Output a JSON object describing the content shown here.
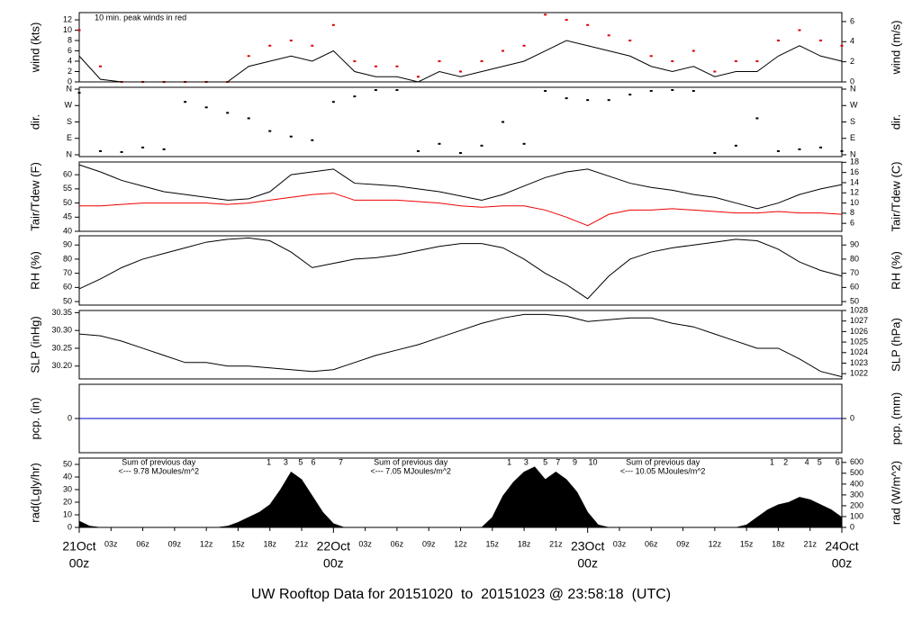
{
  "chart_data": [
    {
      "type": "line",
      "ylabel": "wind (kts)",
      "y2label": "wind (m/s)",
      "annotation": {
        "x": 1.2,
        "text": "10 min. peak winds in red",
        "color": "#dd0000"
      },
      "xlim": [
        0,
        72
      ],
      "ylim": [
        0,
        13.4
      ],
      "yticks": [
        0,
        2,
        4,
        6,
        8,
        10,
        12
      ],
      "y2lim": [
        0,
        6.89
      ],
      "y2ticks": [
        0,
        2,
        4,
        6
      ],
      "x": [
        0,
        2,
        4,
        6,
        8,
        10,
        12,
        14,
        16,
        18,
        20,
        22,
        24,
        26,
        28,
        30,
        32,
        34,
        36,
        38,
        40,
        42,
        44,
        46,
        48,
        50,
        52,
        54,
        56,
        58,
        60,
        62,
        64,
        66,
        68,
        70,
        72
      ],
      "series": [
        {
          "color": "#dd0000",
          "style": "dots",
          "values": [
            10,
            3,
            0,
            0,
            0,
            0,
            0,
            0,
            5,
            7,
            8,
            7,
            11,
            4,
            3,
            3,
            1,
            4,
            2,
            4,
            6,
            7,
            13,
            12,
            11,
            9,
            8,
            5,
            4,
            6,
            2,
            4,
            4,
            8,
            10,
            8,
            7
          ]
        },
        {
          "color": "#000000",
          "style": "line",
          "values": [
            5,
            0.5,
            0,
            0,
            0,
            0,
            0,
            0,
            3,
            4,
            5,
            4,
            6,
            2,
            1,
            1,
            0,
            2,
            1,
            2,
            3,
            4,
            6,
            8,
            7,
            6,
            5,
            3,
            2,
            3,
            1,
            2,
            2,
            5,
            7,
            5,
            4
          ]
        }
      ]
    },
    {
      "type": "scatter",
      "ylabel": "dir.",
      "y2label": "dir.",
      "xlim": [
        0,
        72
      ],
      "ylim": [
        -10,
        370
      ],
      "yticks": [
        {
          "value": 0,
          "label": "N"
        },
        {
          "value": 90,
          "label": "E"
        },
        {
          "value": 180,
          "label": "S"
        },
        {
          "value": 270,
          "label": "W"
        },
        {
          "value": 360,
          "label": "N"
        }
      ],
      "y2lim": [
        -10,
        370
      ],
      "y2ticks": [
        {
          "value": 0,
          "label": "N"
        },
        {
          "value": 90,
          "label": "E"
        },
        {
          "value": 180,
          "label": "S"
        },
        {
          "value": 270,
          "label": "W"
        },
        {
          "value": 360,
          "label": "N"
        }
      ],
      "x": [
        0,
        2,
        4,
        6,
        8,
        10,
        12,
        14,
        16,
        18,
        20,
        22,
        24,
        26,
        28,
        30,
        32,
        34,
        36,
        38,
        40,
        42,
        44,
        46,
        48,
        50,
        52,
        54,
        56,
        58,
        60,
        62,
        64,
        66,
        68,
        70,
        72
      ],
      "series": [
        {
          "color": "#000000",
          "style": "dots",
          "values": [
            340,
            20,
            15,
            40,
            30,
            290,
            260,
            230,
            200,
            130,
            100,
            80,
            290,
            320,
            355,
            355,
            20,
            60,
            10,
            50,
            180,
            60,
            350,
            310,
            300,
            300,
            330,
            350,
            355,
            350,
            10,
            50,
            200,
            20,
            30,
            40,
            20
          ]
        }
      ]
    },
    {
      "type": "line",
      "ylabel": "Tair/Tdew (F)",
      "y2label": "Tair/Tdew (C)",
      "xlim": [
        0,
        72
      ],
      "ylim": [
        40,
        64.5
      ],
      "yticks": [
        40,
        45,
        50,
        55,
        60
      ],
      "y2lim": [
        4.44,
        18.06
      ],
      "y2ticks": [
        6,
        8,
        10,
        12,
        14,
        16,
        18
      ],
      "x": [
        0,
        2,
        4,
        6,
        8,
        10,
        12,
        14,
        16,
        18,
        20,
        22,
        24,
        26,
        28,
        30,
        32,
        34,
        36,
        38,
        40,
        42,
        44,
        46,
        48,
        50,
        52,
        54,
        56,
        58,
        60,
        62,
        64,
        66,
        68,
        70,
        72
      ],
      "series": [
        {
          "color": "#000000",
          "style": "line",
          "values": [
            63.5,
            61,
            58,
            56,
            54,
            53,
            52,
            51,
            51.5,
            54,
            60,
            61,
            62,
            57,
            56.5,
            56,
            55,
            54,
            52.5,
            51,
            53,
            56,
            59,
            61,
            62,
            59.5,
            57,
            55.5,
            54.5,
            53,
            52,
            50,
            48,
            50,
            53,
            55,
            56.5
          ]
        },
        {
          "color": "#ee0000",
          "style": "line",
          "values": [
            49,
            49,
            49.5,
            50,
            50,
            50,
            50,
            49.5,
            50,
            51,
            52,
            53,
            53.5,
            51,
            51,
            51,
            50.5,
            50,
            49,
            48.5,
            49,
            49,
            47.5,
            45,
            42,
            46,
            47.5,
            47.5,
            48,
            47.5,
            47,
            46.5,
            46.5,
            47,
            46.5,
            46.5,
            46
          ]
        }
      ]
    },
    {
      "type": "line",
      "ylabel": "RH (%)",
      "y2label": "RH (%)",
      "xlim": [
        0,
        72
      ],
      "ylim": [
        47.5,
        96.5
      ],
      "yticks": [
        50,
        60,
        70,
        80,
        90
      ],
      "y2lim": [
        47.5,
        96.5
      ],
      "y2ticks": [
        50,
        60,
        70,
        80,
        90
      ],
      "x": [
        0,
        2,
        4,
        6,
        8,
        10,
        12,
        14,
        16,
        18,
        20,
        22,
        24,
        26,
        28,
        30,
        32,
        34,
        36,
        38,
        40,
        42,
        44,
        46,
        48,
        50,
        52,
        54,
        56,
        58,
        60,
        62,
        64,
        66,
        68,
        70,
        72
      ],
      "series": [
        {
          "color": "#000000",
          "style": "line",
          "values": [
            59,
            66,
            74,
            80,
            84,
            88,
            92,
            94,
            95,
            93,
            85,
            74,
            77,
            80,
            81,
            83,
            86,
            89,
            91,
            91,
            88,
            80,
            70,
            62,
            52,
            68,
            80,
            85,
            88,
            90,
            92,
            94,
            93,
            87,
            78,
            72,
            68
          ]
        }
      ]
    },
    {
      "type": "line",
      "ylabel": "SLP (inHg)",
      "y2label": "SLP (hPa)",
      "xlim": [
        0,
        72
      ],
      "ylim": [
        30.164,
        30.356
      ],
      "yticks": [
        {
          "value": 30.2,
          "label": "30.20"
        },
        30.25,
        {
          "value": 30.3,
          "label": "30.30"
        },
        30.35
      ],
      "y2lim": [
        1021.5,
        1028.0
      ],
      "y2ticks": [
        1022,
        1023,
        1024,
        1025,
        1026,
        1027,
        1028
      ],
      "x": [
        0,
        2,
        4,
        6,
        8,
        10,
        12,
        14,
        16,
        18,
        20,
        22,
        24,
        26,
        28,
        30,
        32,
        34,
        36,
        38,
        40,
        42,
        44,
        46,
        48,
        50,
        52,
        54,
        56,
        58,
        60,
        62,
        64,
        66,
        68,
        70,
        72
      ],
      "series": [
        {
          "color": "#000000",
          "style": "line",
          "values": [
            30.29,
            30.285,
            30.27,
            30.25,
            30.23,
            30.21,
            30.21,
            30.2,
            30.2,
            30.195,
            30.19,
            30.185,
            30.19,
            30.21,
            30.23,
            30.245,
            30.26,
            30.28,
            30.3,
            30.32,
            30.335,
            30.345,
            30.345,
            30.34,
            30.325,
            30.33,
            30.335,
            30.335,
            30.32,
            30.31,
            30.29,
            30.27,
            30.25,
            30.25,
            30.22,
            30.185,
            30.17
          ]
        }
      ]
    },
    {
      "type": "line",
      "ylabel": "pcp. (in)",
      "y2label": "pcp. (mm)",
      "xlim": [
        0,
        72
      ],
      "ylim": [
        -1,
        1
      ],
      "yticks": [
        0
      ],
      "y2lim": [
        -25.4,
        25.4
      ],
      "y2ticks": [
        0
      ],
      "x": [
        0,
        72
      ],
      "series": [
        {
          "color": "#0000cc",
          "style": "line",
          "values": [
            0,
            0
          ]
        }
      ]
    },
    {
      "type": "area",
      "ylabel": "rad(Lgly/hr)",
      "y2label": "rad (W/m^2)",
      "xlim": [
        0,
        72
      ],
      "ylim": [
        0,
        55
      ],
      "yticks": [
        0,
        10,
        20,
        30,
        40,
        50
      ],
      "y2lim": [
        0,
        640
      ],
      "y2ticks": [
        0,
        100,
        200,
        300,
        400,
        500,
        600
      ],
      "annotation_color": "#9900cc",
      "annotations": [
        {
          "x": 7.5,
          "lines": [
            "Sum of previous day",
            "<--- 9.78 MJoules/m^2"
          ]
        },
        {
          "x": 31.3,
          "lines": [
            "Sum of previous day",
            "<--- 7.05 MJoules/m^2"
          ]
        },
        {
          "x": 55.1,
          "lines": [
            "Sum of previous day",
            "<--- 10.05 MJoules/m^2"
          ]
        }
      ],
      "hour_labels": [
        {
          "x": 17.9,
          "text": "1"
        },
        {
          "x": 19.5,
          "text": "3"
        },
        {
          "x": 20.9,
          "text": "5"
        },
        {
          "x": 22.1,
          "text": "6"
        },
        {
          "x": 24.7,
          "text": "7"
        },
        {
          "x": 40.6,
          "text": "1"
        },
        {
          "x": 42.2,
          "text": "3"
        },
        {
          "x": 44.0,
          "text": "5"
        },
        {
          "x": 45.2,
          "text": "7"
        },
        {
          "x": 46.8,
          "text": "9"
        },
        {
          "x": 48.5,
          "text": "10"
        },
        {
          "x": 65.4,
          "text": "1"
        },
        {
          "x": 66.7,
          "text": "2"
        },
        {
          "x": 68.7,
          "text": "4"
        },
        {
          "x": 69.9,
          "text": "5"
        },
        {
          "x": 71.6,
          "text": "6"
        }
      ],
      "x": [
        0,
        1,
        2,
        3,
        4,
        5,
        6,
        7,
        8,
        9,
        10,
        11,
        12,
        13,
        14,
        15,
        16,
        17,
        18,
        19,
        20,
        21,
        22,
        23,
        24,
        25,
        26,
        27,
        28,
        29,
        30,
        31,
        32,
        33,
        34,
        35,
        36,
        37,
        38,
        39,
        40,
        41,
        42,
        43,
        44,
        45,
        46,
        47,
        48,
        49,
        50,
        51,
        52,
        53,
        54,
        55,
        56,
        57,
        58,
        59,
        60,
        61,
        62,
        63,
        64,
        65,
        66,
        67,
        68,
        69,
        70,
        71,
        72
      ],
      "series": [
        {
          "color": "#000000",
          "style": "area",
          "values": [
            5,
            1,
            0,
            0,
            0,
            0,
            0,
            0,
            0,
            0,
            0,
            0,
            0,
            0,
            1,
            4,
            8,
            12,
            18,
            30,
            44,
            38,
            25,
            12,
            3,
            0,
            0,
            0,
            0,
            0,
            0,
            0,
            0,
            0,
            0,
            0,
            0,
            0,
            0,
            8,
            25,
            36,
            44,
            48,
            38,
            44,
            38,
            28,
            12,
            2,
            0,
            0,
            0,
            0,
            0,
            0,
            0,
            0,
            0,
            0,
            0,
            0,
            0,
            2,
            8,
            14,
            18,
            20,
            24,
            22,
            18,
            14,
            8
          ]
        }
      ],
      "xticks": [
        {
          "value": 3,
          "label": "03z"
        },
        {
          "value": 6,
          "label": "06z"
        },
        {
          "value": 9,
          "label": "09z"
        },
        {
          "value": 12,
          "label": "12z"
        },
        {
          "value": 15,
          "label": "15z"
        },
        {
          "value": 18,
          "label": "18z"
        },
        {
          "value": 21,
          "label": "21z"
        },
        {
          "value": 27,
          "label": "03z"
        },
        {
          "value": 30,
          "label": "06z"
        },
        {
          "value": 33,
          "label": "09z"
        },
        {
          "value": 36,
          "label": "12z"
        },
        {
          "value": 39,
          "label": "15z"
        },
        {
          "value": 42,
          "label": "18z"
        },
        {
          "value": 45,
          "label": "21z"
        },
        {
          "value": 51,
          "label": "03z"
        },
        {
          "value": 54,
          "label": "06z"
        },
        {
          "value": 57,
          "label": "09z"
        },
        {
          "value": 60,
          "label": "12z"
        },
        {
          "value": 63,
          "label": "15z"
        },
        {
          "value": 66,
          "label": "18z"
        },
        {
          "value": 69,
          "label": "21z"
        }
      ],
      "date_color": "#ee0000",
      "date_ticks": [
        {
          "value": 0,
          "label": "21Oct",
          "time": "00z"
        },
        {
          "value": 24,
          "label": "22Oct",
          "time": "00z"
        },
        {
          "value": 48,
          "label": "23Oct",
          "time": "00z"
        },
        {
          "value": 72,
          "label": "24Oct",
          "time": "00z"
        }
      ]
    }
  ],
  "footer": {
    "title": "UW Rooftop Data for 20151020  to  20151023 @ 23:58:18  (UTC)",
    "color": "#0000cc"
  }
}
